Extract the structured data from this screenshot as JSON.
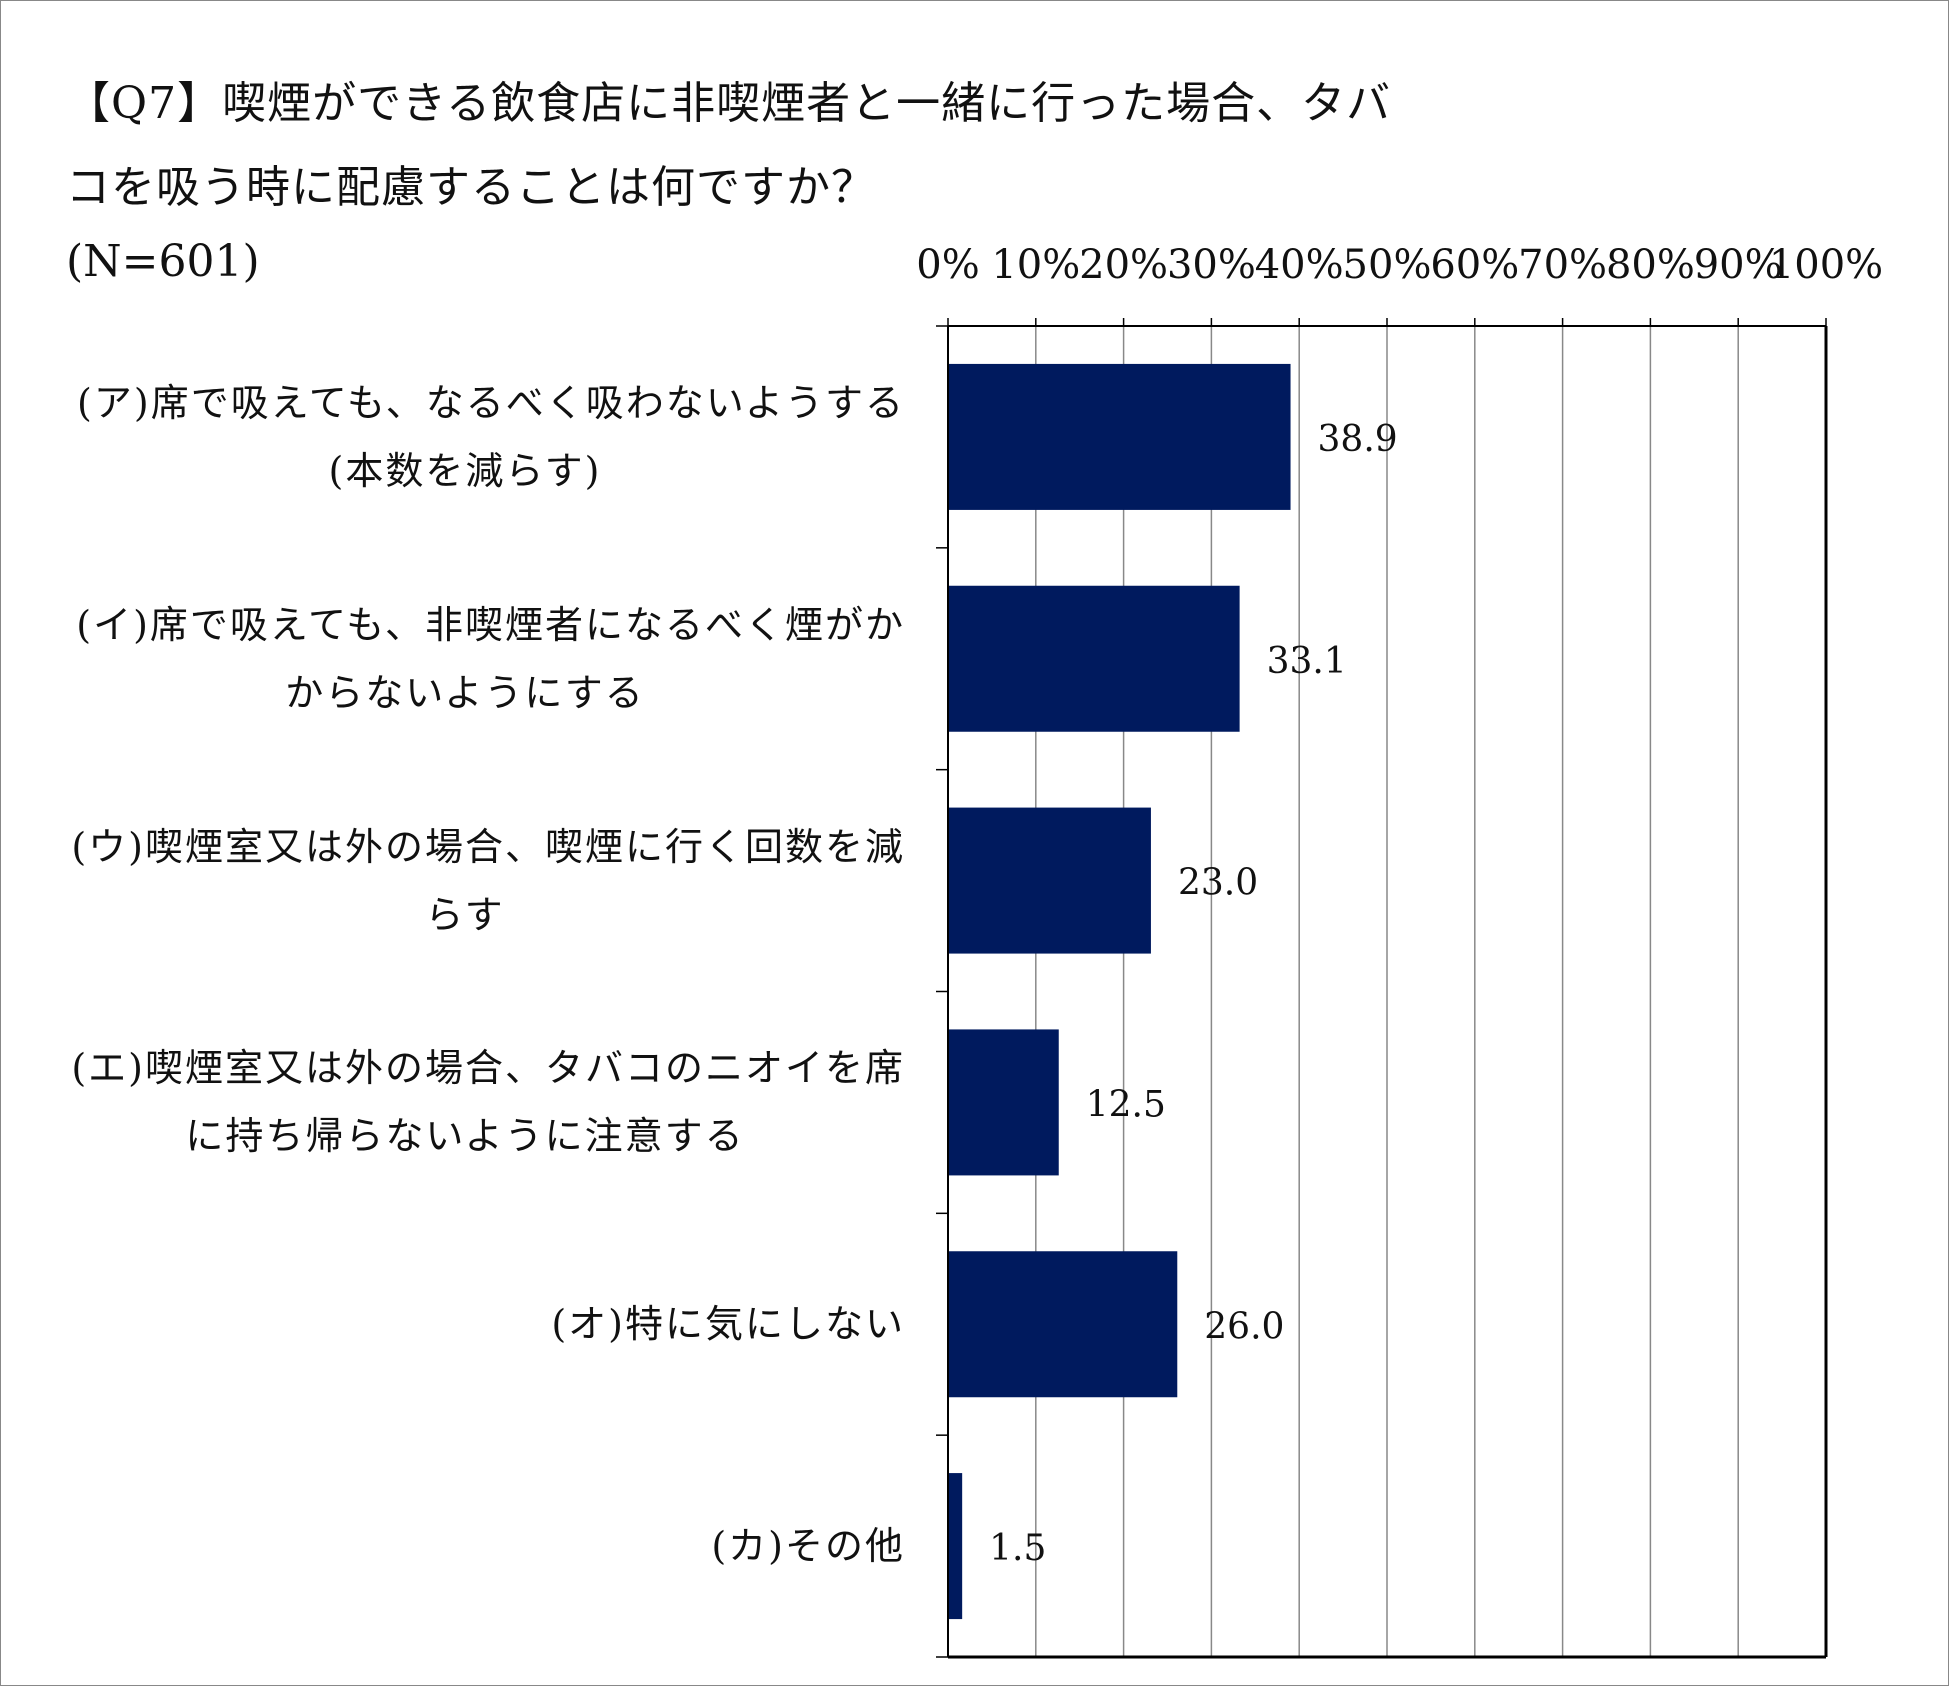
{
  "title": {
    "line1": "【Q7】喫煙ができる飲食店に非喫煙者と一緒に行った場合、タバ",
    "line2": "コを吸う時に配慮することは何ですか？"
  },
  "sample": "(N=601)",
  "colors": {
    "bar": "#001a5e",
    "grid": "#888888",
    "axis": "#000000"
  },
  "chart_data": {
    "type": "bar",
    "orientation": "horizontal",
    "categories": [
      [
        "(ア)席で吸えても、なるべく吸わないようする",
        "(本数を減らす)"
      ],
      [
        "(イ)席で吸えても、非喫煙者になるべく煙がか",
        "からないようにする"
      ],
      [
        "(ウ)喫煙室又は外の場合、喫煙に行く回数を減",
        "らす"
      ],
      [
        "(エ)喫煙室又は外の場合、タバコのニオイを席",
        "に持ち帰らないように注意する"
      ],
      [
        "(オ)特に気にしない"
      ],
      [
        "(カ)その他"
      ]
    ],
    "values": [
      38.9,
      33.1,
      23.0,
      12.5,
      26.0,
      1.5
    ],
    "value_labels": [
      "38.9",
      "33.1",
      "23.0",
      "12.5",
      "26.0",
      "1.5"
    ],
    "x_ticks": [
      "0%",
      "10%",
      "20%",
      "30%",
      "40%",
      "50%",
      "60%",
      "70%",
      "80%",
      "90%",
      "100%"
    ],
    "xlim": [
      0,
      100
    ],
    "grid": true,
    "axis_position": "top"
  }
}
